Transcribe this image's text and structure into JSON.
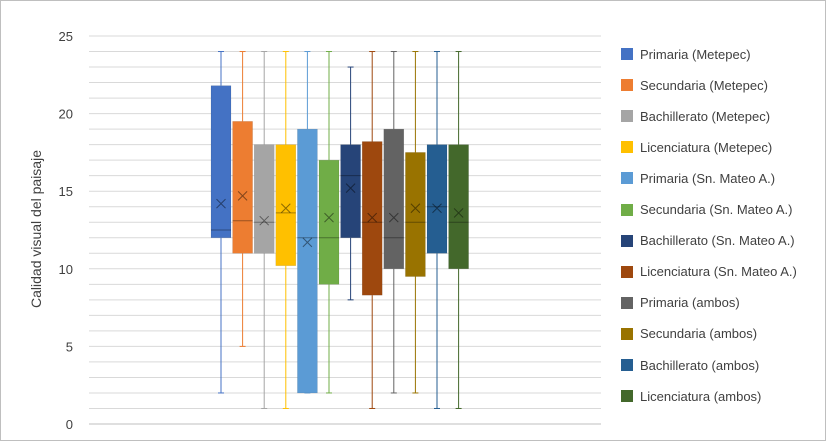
{
  "chart_data": {
    "type": "box",
    "title": "",
    "xlabel": "",
    "ylabel": "Calidad visual del paisaje",
    "ylim": [
      0,
      25
    ],
    "yticks": [
      0,
      5,
      10,
      15,
      20,
      25
    ],
    "grid": true,
    "legend_position": "right",
    "series": [
      {
        "name": "Primaria (Metepec)",
        "color": "#4472c4",
        "min": 2,
        "q1": 12,
        "median": 12.5,
        "q3": 21.8,
        "max": 24,
        "mean": 14.2
      },
      {
        "name": "Secundaria (Metepec)",
        "color": "#ed7d31",
        "min": 5,
        "q1": 11,
        "median": 13.1,
        "q3": 19.5,
        "max": 24,
        "mean": 14.7
      },
      {
        "name": "Bachillerato (Metepec)",
        "color": "#a5a5a5",
        "min": 1,
        "q1": 11,
        "median": 13,
        "q3": 18,
        "max": 24,
        "mean": 13.1
      },
      {
        "name": "Licenciatura (Metepec)",
        "color": "#ffc000",
        "min": 1,
        "q1": 10.2,
        "median": 13.6,
        "q3": 18,
        "max": 24,
        "mean": 13.9
      },
      {
        "name": "Primaria (Sn. Mateo A.)",
        "color": "#5b9bd5",
        "min": 2,
        "q1": 2,
        "median": 12,
        "q3": 19,
        "max": 24,
        "mean": 11.7
      },
      {
        "name": "Secundaria (Sn. Mateo A.)",
        "color": "#70ad47",
        "min": 2,
        "q1": 9,
        "median": 12,
        "q3": 17,
        "max": 24,
        "mean": 13.3
      },
      {
        "name": "Bachillerato (Sn. Mateo A.)",
        "color": "#264478",
        "min": 8,
        "q1": 12,
        "median": 16,
        "q3": 18,
        "max": 23,
        "mean": 15.2
      },
      {
        "name": "Licenciatura (Sn. Mateo A.)",
        "color": "#9e480e",
        "min": 1,
        "q1": 8.3,
        "median": 13,
        "q3": 18.2,
        "max": 24,
        "mean": 13.3
      },
      {
        "name": "Primaria (ambos)",
        "color": "#636363",
        "min": 2,
        "q1": 10,
        "median": 12,
        "q3": 19,
        "max": 24,
        "mean": 13.3
      },
      {
        "name": "Secundaria (ambos)",
        "color": "#997300",
        "min": 2,
        "q1": 9.5,
        "median": 13,
        "q3": 17.5,
        "max": 24,
        "mean": 13.9
      },
      {
        "name": "Bachillerato (ambos)",
        "color": "#255e91",
        "min": 1,
        "q1": 11,
        "median": 14,
        "q3": 18,
        "max": 24,
        "mean": 13.9
      },
      {
        "name": "Licenciatura (ambos)",
        "color": "#43682b",
        "min": 1,
        "q1": 10,
        "median": 13,
        "q3": 18,
        "max": 24,
        "mean": 13.6
      }
    ]
  }
}
